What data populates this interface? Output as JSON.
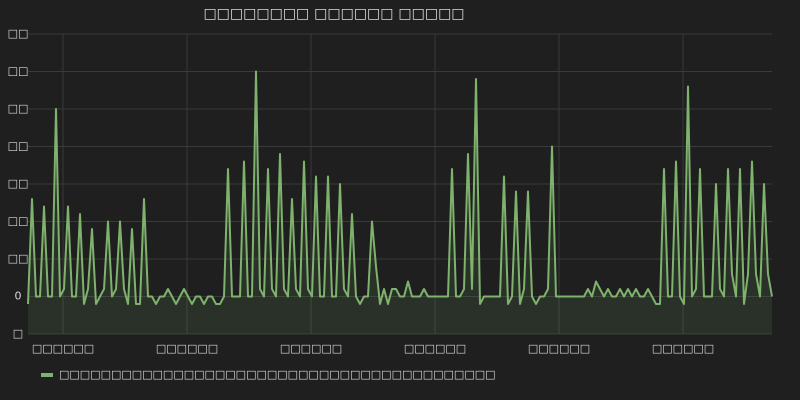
{
  "chart_data": {
    "type": "line",
    "title": "□□□□□□□□ □□□□□□ □□□□□",
    "xlim": [
      0,
      186
    ],
    "xticks": [
      {
        "value": 8.75,
        "label": "□□□□□□"
      },
      {
        "value": 39.75,
        "label": "□□□□□□"
      },
      {
        "value": 70.75,
        "label": "□□□□□□"
      },
      {
        "value": 101.75,
        "label": "□□□□□□"
      },
      {
        "value": 132.75,
        "label": "□□□□□□"
      },
      {
        "value": 163.75,
        "label": "□□□□□□"
      }
    ],
    "ylim": [
      -10,
      70
    ],
    "yticks": [
      {
        "value": -10,
        "label": "□"
      },
      0,
      {
        "value": 10,
        "label": "□□"
      },
      {
        "value": 20,
        "label": "□□"
      },
      {
        "value": 30,
        "label": "□□"
      },
      {
        "value": 40,
        "label": "□□"
      },
      {
        "value": 50,
        "label": "□□"
      },
      {
        "value": 60,
        "label": "□□"
      },
      {
        "value": 70,
        "label": "□□"
      }
    ],
    "grid": true,
    "series": [
      {
        "name": "□□□□□□□□□□□□□□□□□□□□□□□□□□□□□□□□□□□□□□□□□□",
        "color": "#7eb26d",
        "values": [
          -2,
          26,
          0,
          0,
          24,
          0,
          0,
          50,
          0,
          2,
          24,
          0,
          0,
          22,
          -2,
          2,
          18,
          -2,
          0,
          2,
          20,
          0,
          2,
          20,
          2,
          -2,
          18,
          -2,
          -2,
          26,
          0,
          0,
          -2,
          0,
          0,
          2,
          0,
          -2,
          0,
          2,
          0,
          -2,
          0,
          0,
          -2,
          0,
          0,
          -2,
          -2,
          0,
          34,
          0,
          0,
          0,
          36,
          0,
          0,
          60,
          2,
          0,
          34,
          2,
          0,
          38,
          2,
          0,
          26,
          2,
          0,
          36,
          2,
          0,
          32,
          0,
          0,
          32,
          0,
          0,
          30,
          2,
          0,
          22,
          0,
          -2,
          0,
          0,
          20,
          8,
          -2,
          2,
          -2,
          2,
          2,
          0,
          0,
          4,
          0,
          0,
          0,
          2,
          0,
          0,
          0,
          0,
          0,
          0,
          34,
          0,
          0,
          2,
          38,
          2,
          58,
          -2,
          0,
          0,
          0,
          0,
          0,
          32,
          -2,
          0,
          28,
          -2,
          2,
          28,
          0,
          -2,
          0,
          0,
          2,
          40,
          0,
          0,
          0,
          0,
          0,
          0,
          0,
          0,
          2,
          0,
          4,
          2,
          0,
          2,
          0,
          0,
          2,
          0,
          2,
          0,
          2,
          0,
          0,
          2,
          0,
          -2,
          -2,
          34,
          0,
          0,
          36,
          0,
          -2,
          56,
          0,
          2,
          34,
          0,
          0,
          0,
          30,
          2,
          0,
          34,
          6,
          0,
          34,
          -2,
          6,
          36,
          6,
          0,
          30,
          6,
          0
        ]
      }
    ],
    "legend": "bottom-left"
  }
}
